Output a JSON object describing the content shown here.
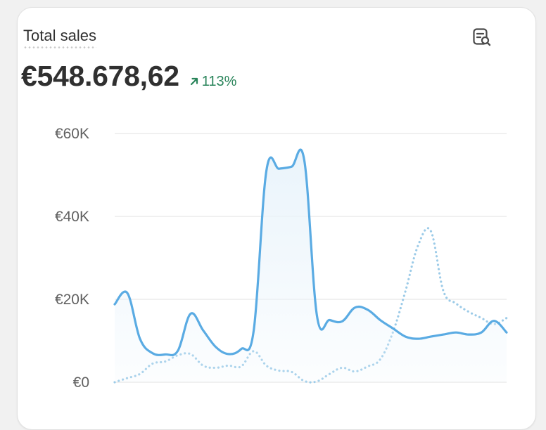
{
  "card": {
    "title": "Total sales",
    "total_value": "€548.678,62",
    "change_percent": "113%",
    "change_direction": "up",
    "icons": {
      "report": "report-search-icon",
      "change": "arrow-up-right-icon"
    }
  },
  "colors": {
    "current_series": "#5aabe3",
    "comparison_series": "#9ccbe8",
    "area_fill": "#eaf4fb",
    "grid": "#e8e8e8",
    "positive": "#29845a",
    "text": "#303030",
    "muted_text": "#616161"
  },
  "chart_data": {
    "type": "line",
    "title": "Total sales",
    "xlabel": "",
    "ylabel": "",
    "ylim": [
      0,
      60000
    ],
    "y_ticks": [
      {
        "value": 0,
        "label": "€0"
      },
      {
        "value": 20000,
        "label": "€20K"
      },
      {
        "value": 40000,
        "label": "€40K"
      },
      {
        "value": 60000,
        "label": "€60K"
      }
    ],
    "grid": true,
    "x_axis_labels_visible": false,
    "series": [
      {
        "style": "solid",
        "filled_area": true,
        "values": [
          18800,
          21500,
          10500,
          7000,
          6700,
          7600,
          16500,
          12500,
          8500,
          6800,
          8000,
          12500,
          51000,
          51500,
          52000,
          53500,
          16000,
          15000,
          14700,
          18000,
          17500,
          15000,
          13000,
          11000,
          10500,
          11000,
          11500,
          12000,
          11500,
          12000,
          14800,
          12000
        ]
      },
      {
        "style": "dotted",
        "filled_area": false,
        "values": [
          0,
          1000,
          2000,
          4500,
          5000,
          6500,
          6800,
          4000,
          3500,
          4000,
          3800,
          7500,
          4000,
          2800,
          2500,
          300,
          200,
          2000,
          3500,
          2600,
          3800,
          5500,
          12000,
          22000,
          33000,
          36500,
          22000,
          19000,
          17000,
          15500,
          14000,
          15500
        ]
      }
    ]
  }
}
